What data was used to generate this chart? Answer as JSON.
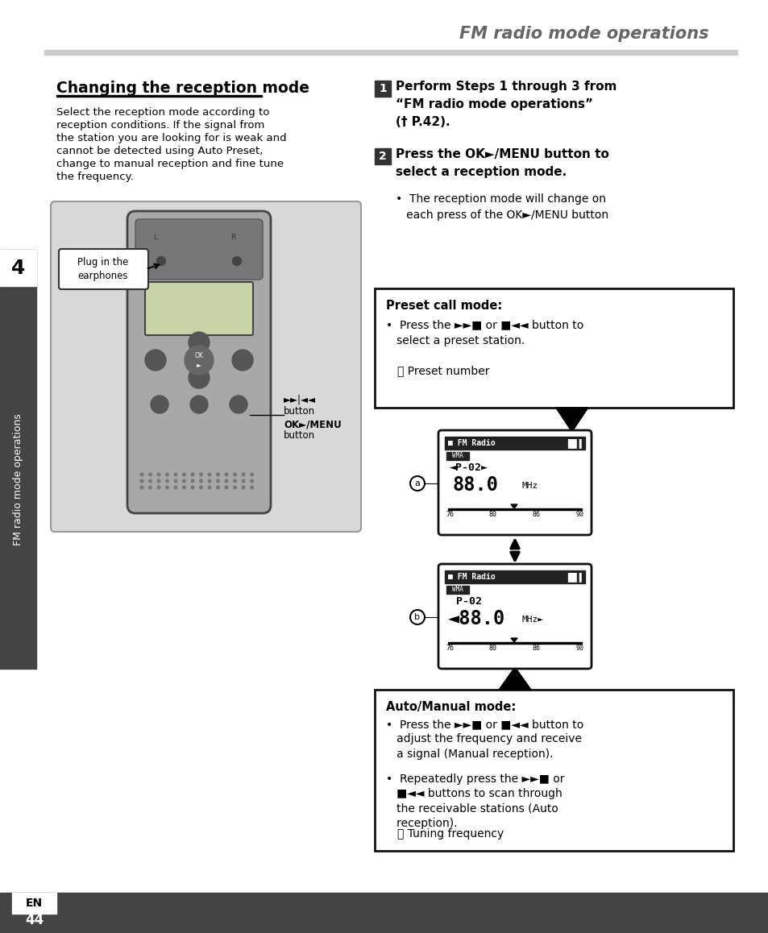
{
  "page_title": "FM radio mode operations",
  "section_title": "Changing the reception mode",
  "left_body": [
    "Select the reception mode according to",
    "reception conditions. If the signal from",
    "the station you are looking for is weak and",
    "cannot be detected using Auto Preset,",
    "change to manual reception and fine tune",
    "the frequency."
  ],
  "step1_text": "Perform Steps 1 through 3 from\n“FM radio mode operations”\n(† P.42).",
  "step2_text": "Press the OK►/MENU button to\nselect a reception mode.",
  "step2_bullet": "•  The reception mode will change on\n   each press of the OK►/MENU button",
  "preset_title": "Preset call mode:",
  "preset_b1": "•  Press the ►►■ or ■◄◄ button to\n   select a preset station.",
  "preset_note": "ⓐ Preset number",
  "auto_title": "Auto/Manual mode:",
  "auto_b1": "•  Press the ►►■ or ■◄◄ button to\n   adjust the frequency and receive\n   a signal (Manual reception).",
  "auto_b2": "•  Repeatedly press the ►►■ or\n   ■◄◄ buttons to scan through\n   the receivable stations (Auto\n   reception).",
  "auto_note": "ⓑ Tuning frequency",
  "sidebar_text": "FM radio mode operations",
  "page_num": "44",
  "en_label": "EN",
  "bg": "#ffffff",
  "dark": "#333333",
  "gray": "#cccccc",
  "title_gray": "#666666",
  "sidebar_bg": "#444444"
}
